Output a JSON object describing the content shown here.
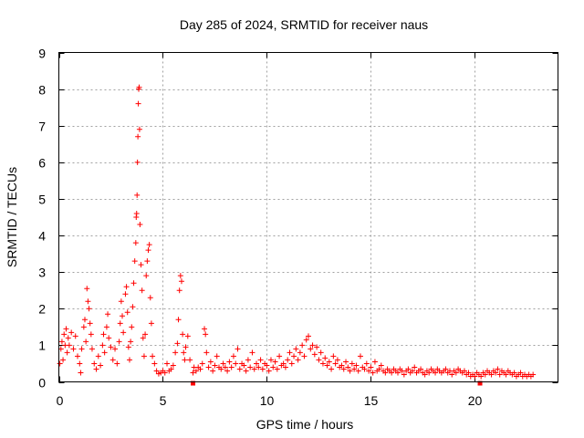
{
  "chart_data": {
    "type": "scatter",
    "title": "Day 285 of 2024, SRMTID for receiver naus",
    "xlabel": "GPS time / hours",
    "ylabel": "SRMTID / TECUs",
    "xlim": [
      0,
      24
    ],
    "ylim": [
      0,
      9
    ],
    "xticks": [
      0,
      5,
      10,
      15,
      20
    ],
    "xtick_labels": [
      "0",
      "5",
      "10",
      "15",
      "20"
    ],
    "yticks": [
      0,
      1,
      2,
      3,
      4,
      5,
      6,
      7,
      8,
      9
    ],
    "ytick_labels": [
      "0",
      "1",
      "2",
      "3",
      "4",
      "5",
      "6",
      "7",
      "8",
      "9"
    ],
    "grid": true,
    "marker": "plus",
    "series": [
      {
        "name": "SRMTID",
        "color": "#ff0000",
        "points": [
          [
            0.05,
            0.5
          ],
          [
            0.1,
            0.9
          ],
          [
            0.15,
            1.1
          ],
          [
            0.2,
            0.6
          ],
          [
            0.25,
            1.3
          ],
          [
            0.3,
            1.0
          ],
          [
            0.35,
            1.45
          ],
          [
            0.4,
            0.8
          ],
          [
            0.45,
            1.2
          ],
          [
            0.5,
            1.0
          ],
          [
            0.6,
            1.35
          ],
          [
            0.7,
            0.9
          ],
          [
            0.8,
            1.25
          ],
          [
            0.9,
            0.7
          ],
          [
            1.0,
            0.5
          ],
          [
            1.05,
            0.25
          ],
          [
            1.1,
            0.9
          ],
          [
            1.2,
            1.5
          ],
          [
            1.25,
            1.7
          ],
          [
            1.3,
            1.1
          ],
          [
            1.35,
            2.55
          ],
          [
            1.4,
            2.2
          ],
          [
            1.45,
            2.0
          ],
          [
            1.5,
            1.6
          ],
          [
            1.55,
            1.3
          ],
          [
            1.6,
            0.9
          ],
          [
            1.7,
            0.5
          ],
          [
            1.8,
            0.35
          ],
          [
            1.9,
            0.7
          ],
          [
            2.0,
            0.45
          ],
          [
            2.1,
            1.0
          ],
          [
            2.15,
            1.3
          ],
          [
            2.2,
            0.8
          ],
          [
            2.3,
            1.5
          ],
          [
            2.35,
            1.85
          ],
          [
            2.4,
            1.2
          ],
          [
            2.5,
            0.95
          ],
          [
            2.6,
            0.6
          ],
          [
            2.7,
            0.9
          ],
          [
            2.8,
            0.5
          ],
          [
            2.9,
            1.1
          ],
          [
            2.95,
            1.6
          ],
          [
            3.0,
            2.2
          ],
          [
            3.05,
            1.8
          ],
          [
            3.1,
            1.35
          ],
          [
            3.2,
            2.4
          ],
          [
            3.25,
            2.6
          ],
          [
            3.3,
            1.9
          ],
          [
            3.35,
            0.95
          ],
          [
            3.4,
            0.6
          ],
          [
            3.45,
            1.1
          ],
          [
            3.5,
            1.5
          ],
          [
            3.55,
            2.05
          ],
          [
            3.6,
            2.7
          ],
          [
            3.65,
            3.3
          ],
          [
            3.7,
            3.8
          ],
          [
            3.72,
            4.5
          ],
          [
            3.74,
            4.6
          ],
          [
            3.76,
            5.1
          ],
          [
            3.78,
            6.0
          ],
          [
            3.8,
            6.7
          ],
          [
            3.82,
            7.6
          ],
          [
            3.84,
            8.0
          ],
          [
            3.86,
            8.05
          ],
          [
            3.88,
            6.9
          ],
          [
            3.9,
            4.3
          ],
          [
            3.95,
            3.2
          ],
          [
            4.0,
            2.5
          ],
          [
            4.05,
            1.2
          ],
          [
            4.1,
            0.7
          ],
          [
            4.15,
            1.3
          ],
          [
            4.2,
            2.9
          ],
          [
            4.25,
            3.3
          ],
          [
            4.3,
            3.6
          ],
          [
            4.35,
            3.75
          ],
          [
            4.4,
            2.3
          ],
          [
            4.45,
            1.6
          ],
          [
            4.5,
            0.7
          ],
          [
            4.6,
            0.5
          ],
          [
            4.7,
            0.3
          ],
          [
            4.8,
            0.22
          ],
          [
            4.9,
            0.25
          ],
          [
            5.0,
            0.3
          ],
          [
            5.1,
            0.25
          ],
          [
            5.2,
            0.5
          ],
          [
            5.3,
            0.3
          ],
          [
            5.4,
            0.35
          ],
          [
            5.5,
            0.45
          ],
          [
            5.6,
            0.8
          ],
          [
            5.7,
            1.05
          ],
          [
            5.75,
            1.7
          ],
          [
            5.8,
            2.5
          ],
          [
            5.85,
            2.9
          ],
          [
            5.9,
            2.75
          ],
          [
            5.95,
            1.3
          ],
          [
            6.0,
            0.8
          ],
          [
            6.05,
            0.6
          ],
          [
            6.1,
            0.95
          ],
          [
            6.2,
            1.25
          ],
          [
            6.3,
            0.6
          ],
          [
            6.45,
            0.25
          ],
          [
            6.5,
            0.4
          ],
          [
            6.6,
            0.3
          ],
          [
            6.7,
            0.4
          ],
          [
            6.8,
            0.35
          ],
          [
            6.9,
            0.5
          ],
          [
            7.0,
            1.45
          ],
          [
            7.05,
            1.3
          ],
          [
            7.1,
            0.8
          ],
          [
            7.2,
            0.4
          ],
          [
            7.3,
            0.55
          ],
          [
            7.4,
            0.3
          ],
          [
            7.5,
            0.45
          ],
          [
            7.6,
            0.7
          ],
          [
            7.7,
            0.4
          ],
          [
            7.8,
            0.35
          ],
          [
            7.9,
            0.5
          ],
          [
            8.0,
            0.4
          ],
          [
            8.1,
            0.3
          ],
          [
            8.2,
            0.55
          ],
          [
            8.3,
            0.4
          ],
          [
            8.4,
            0.7
          ],
          [
            8.5,
            0.5
          ],
          [
            8.6,
            0.9
          ],
          [
            8.7,
            0.35
          ],
          [
            8.8,
            0.5
          ],
          [
            8.9,
            0.45
          ],
          [
            9.0,
            0.3
          ],
          [
            9.1,
            0.6
          ],
          [
            9.2,
            0.4
          ],
          [
            9.3,
            0.8
          ],
          [
            9.4,
            0.35
          ],
          [
            9.5,
            0.5
          ],
          [
            9.6,
            0.4
          ],
          [
            9.7,
            0.6
          ],
          [
            9.8,
            0.35
          ],
          [
            9.9,
            0.5
          ],
          [
            10.0,
            0.45
          ],
          [
            10.1,
            0.3
          ],
          [
            10.2,
            0.6
          ],
          [
            10.3,
            0.4
          ],
          [
            10.4,
            0.55
          ],
          [
            10.5,
            0.35
          ],
          [
            10.6,
            0.7
          ],
          [
            10.7,
            0.45
          ],
          [
            10.8,
            0.5
          ],
          [
            10.9,
            0.4
          ],
          [
            11.0,
            0.6
          ],
          [
            11.1,
            0.8
          ],
          [
            11.2,
            0.5
          ],
          [
            11.3,
            0.7
          ],
          [
            11.4,
            0.9
          ],
          [
            11.5,
            0.6
          ],
          [
            11.6,
            0.8
          ],
          [
            11.7,
            1.0
          ],
          [
            11.8,
            0.7
          ],
          [
            11.9,
            1.15
          ],
          [
            12.0,
            1.25
          ],
          [
            12.1,
            0.9
          ],
          [
            12.2,
            1.0
          ],
          [
            12.3,
            0.75
          ],
          [
            12.4,
            0.95
          ],
          [
            12.5,
            0.6
          ],
          [
            12.6,
            0.8
          ],
          [
            12.7,
            0.5
          ],
          [
            12.8,
            0.65
          ],
          [
            12.9,
            0.45
          ],
          [
            13.0,
            0.55
          ],
          [
            13.1,
            0.35
          ],
          [
            13.2,
            0.7
          ],
          [
            13.3,
            0.5
          ],
          [
            13.4,
            0.6
          ],
          [
            13.5,
            0.4
          ],
          [
            13.6,
            0.45
          ],
          [
            13.7,
            0.35
          ],
          [
            13.8,
            0.55
          ],
          [
            13.9,
            0.4
          ],
          [
            14.0,
            0.3
          ],
          [
            14.1,
            0.5
          ],
          [
            14.2,
            0.35
          ],
          [
            14.3,
            0.45
          ],
          [
            14.4,
            0.3
          ],
          [
            14.5,
            0.7
          ],
          [
            14.6,
            0.4
          ],
          [
            14.7,
            0.35
          ],
          [
            14.8,
            0.5
          ],
          [
            14.9,
            0.3
          ],
          [
            15.0,
            0.4
          ],
          [
            15.1,
            0.25
          ],
          [
            15.2,
            0.55
          ],
          [
            15.3,
            0.3
          ],
          [
            15.4,
            0.35
          ],
          [
            15.5,
            0.45
          ],
          [
            15.6,
            0.3
          ],
          [
            15.7,
            0.25
          ],
          [
            15.8,
            0.35
          ],
          [
            15.9,
            0.3
          ],
          [
            16.0,
            0.25
          ],
          [
            16.1,
            0.35
          ],
          [
            16.2,
            0.3
          ],
          [
            16.3,
            0.25
          ],
          [
            16.4,
            0.35
          ],
          [
            16.5,
            0.3
          ],
          [
            16.6,
            0.2
          ],
          [
            16.7,
            0.3
          ],
          [
            16.8,
            0.35
          ],
          [
            16.9,
            0.25
          ],
          [
            17.0,
            0.3
          ],
          [
            17.1,
            0.4
          ],
          [
            17.2,
            0.25
          ],
          [
            17.3,
            0.3
          ],
          [
            17.4,
            0.35
          ],
          [
            17.5,
            0.25
          ],
          [
            17.6,
            0.2
          ],
          [
            17.7,
            0.3
          ],
          [
            17.8,
            0.25
          ],
          [
            17.9,
            0.35
          ],
          [
            18.0,
            0.3
          ],
          [
            18.1,
            0.25
          ],
          [
            18.2,
            0.35
          ],
          [
            18.3,
            0.3
          ],
          [
            18.4,
            0.25
          ],
          [
            18.5,
            0.3
          ],
          [
            18.6,
            0.35
          ],
          [
            18.7,
            0.25
          ],
          [
            18.8,
            0.3
          ],
          [
            18.9,
            0.2
          ],
          [
            19.0,
            0.3
          ],
          [
            19.1,
            0.25
          ],
          [
            19.2,
            0.35
          ],
          [
            19.3,
            0.3
          ],
          [
            19.4,
            0.25
          ],
          [
            19.5,
            0.3
          ],
          [
            19.6,
            0.2
          ],
          [
            19.7,
            0.25
          ],
          [
            19.8,
            0.15
          ],
          [
            19.9,
            0.2
          ],
          [
            20.0,
            0.15
          ],
          [
            20.1,
            0.25
          ],
          [
            20.2,
            0.2
          ],
          [
            20.3,
            0.15
          ],
          [
            20.4,
            0.25
          ],
          [
            20.5,
            0.2
          ],
          [
            20.6,
            0.3
          ],
          [
            20.7,
            0.25
          ],
          [
            20.8,
            0.2
          ],
          [
            20.9,
            0.3
          ],
          [
            21.0,
            0.25
          ],
          [
            21.1,
            0.35
          ],
          [
            21.2,
            0.2
          ],
          [
            21.3,
            0.3
          ],
          [
            21.4,
            0.25
          ],
          [
            21.5,
            0.2
          ],
          [
            21.6,
            0.3
          ],
          [
            21.7,
            0.25
          ],
          [
            21.8,
            0.2
          ],
          [
            21.9,
            0.25
          ],
          [
            22.0,
            0.15
          ],
          [
            22.1,
            0.2
          ],
          [
            22.2,
            0.25
          ],
          [
            22.3,
            0.15
          ],
          [
            22.4,
            0.2
          ],
          [
            22.5,
            0.15
          ],
          [
            22.6,
            0.2
          ],
          [
            22.7,
            0.15
          ],
          [
            22.8,
            0.2
          ]
        ]
      }
    ],
    "gap_markers": [
      6.45,
      20.25
    ]
  }
}
